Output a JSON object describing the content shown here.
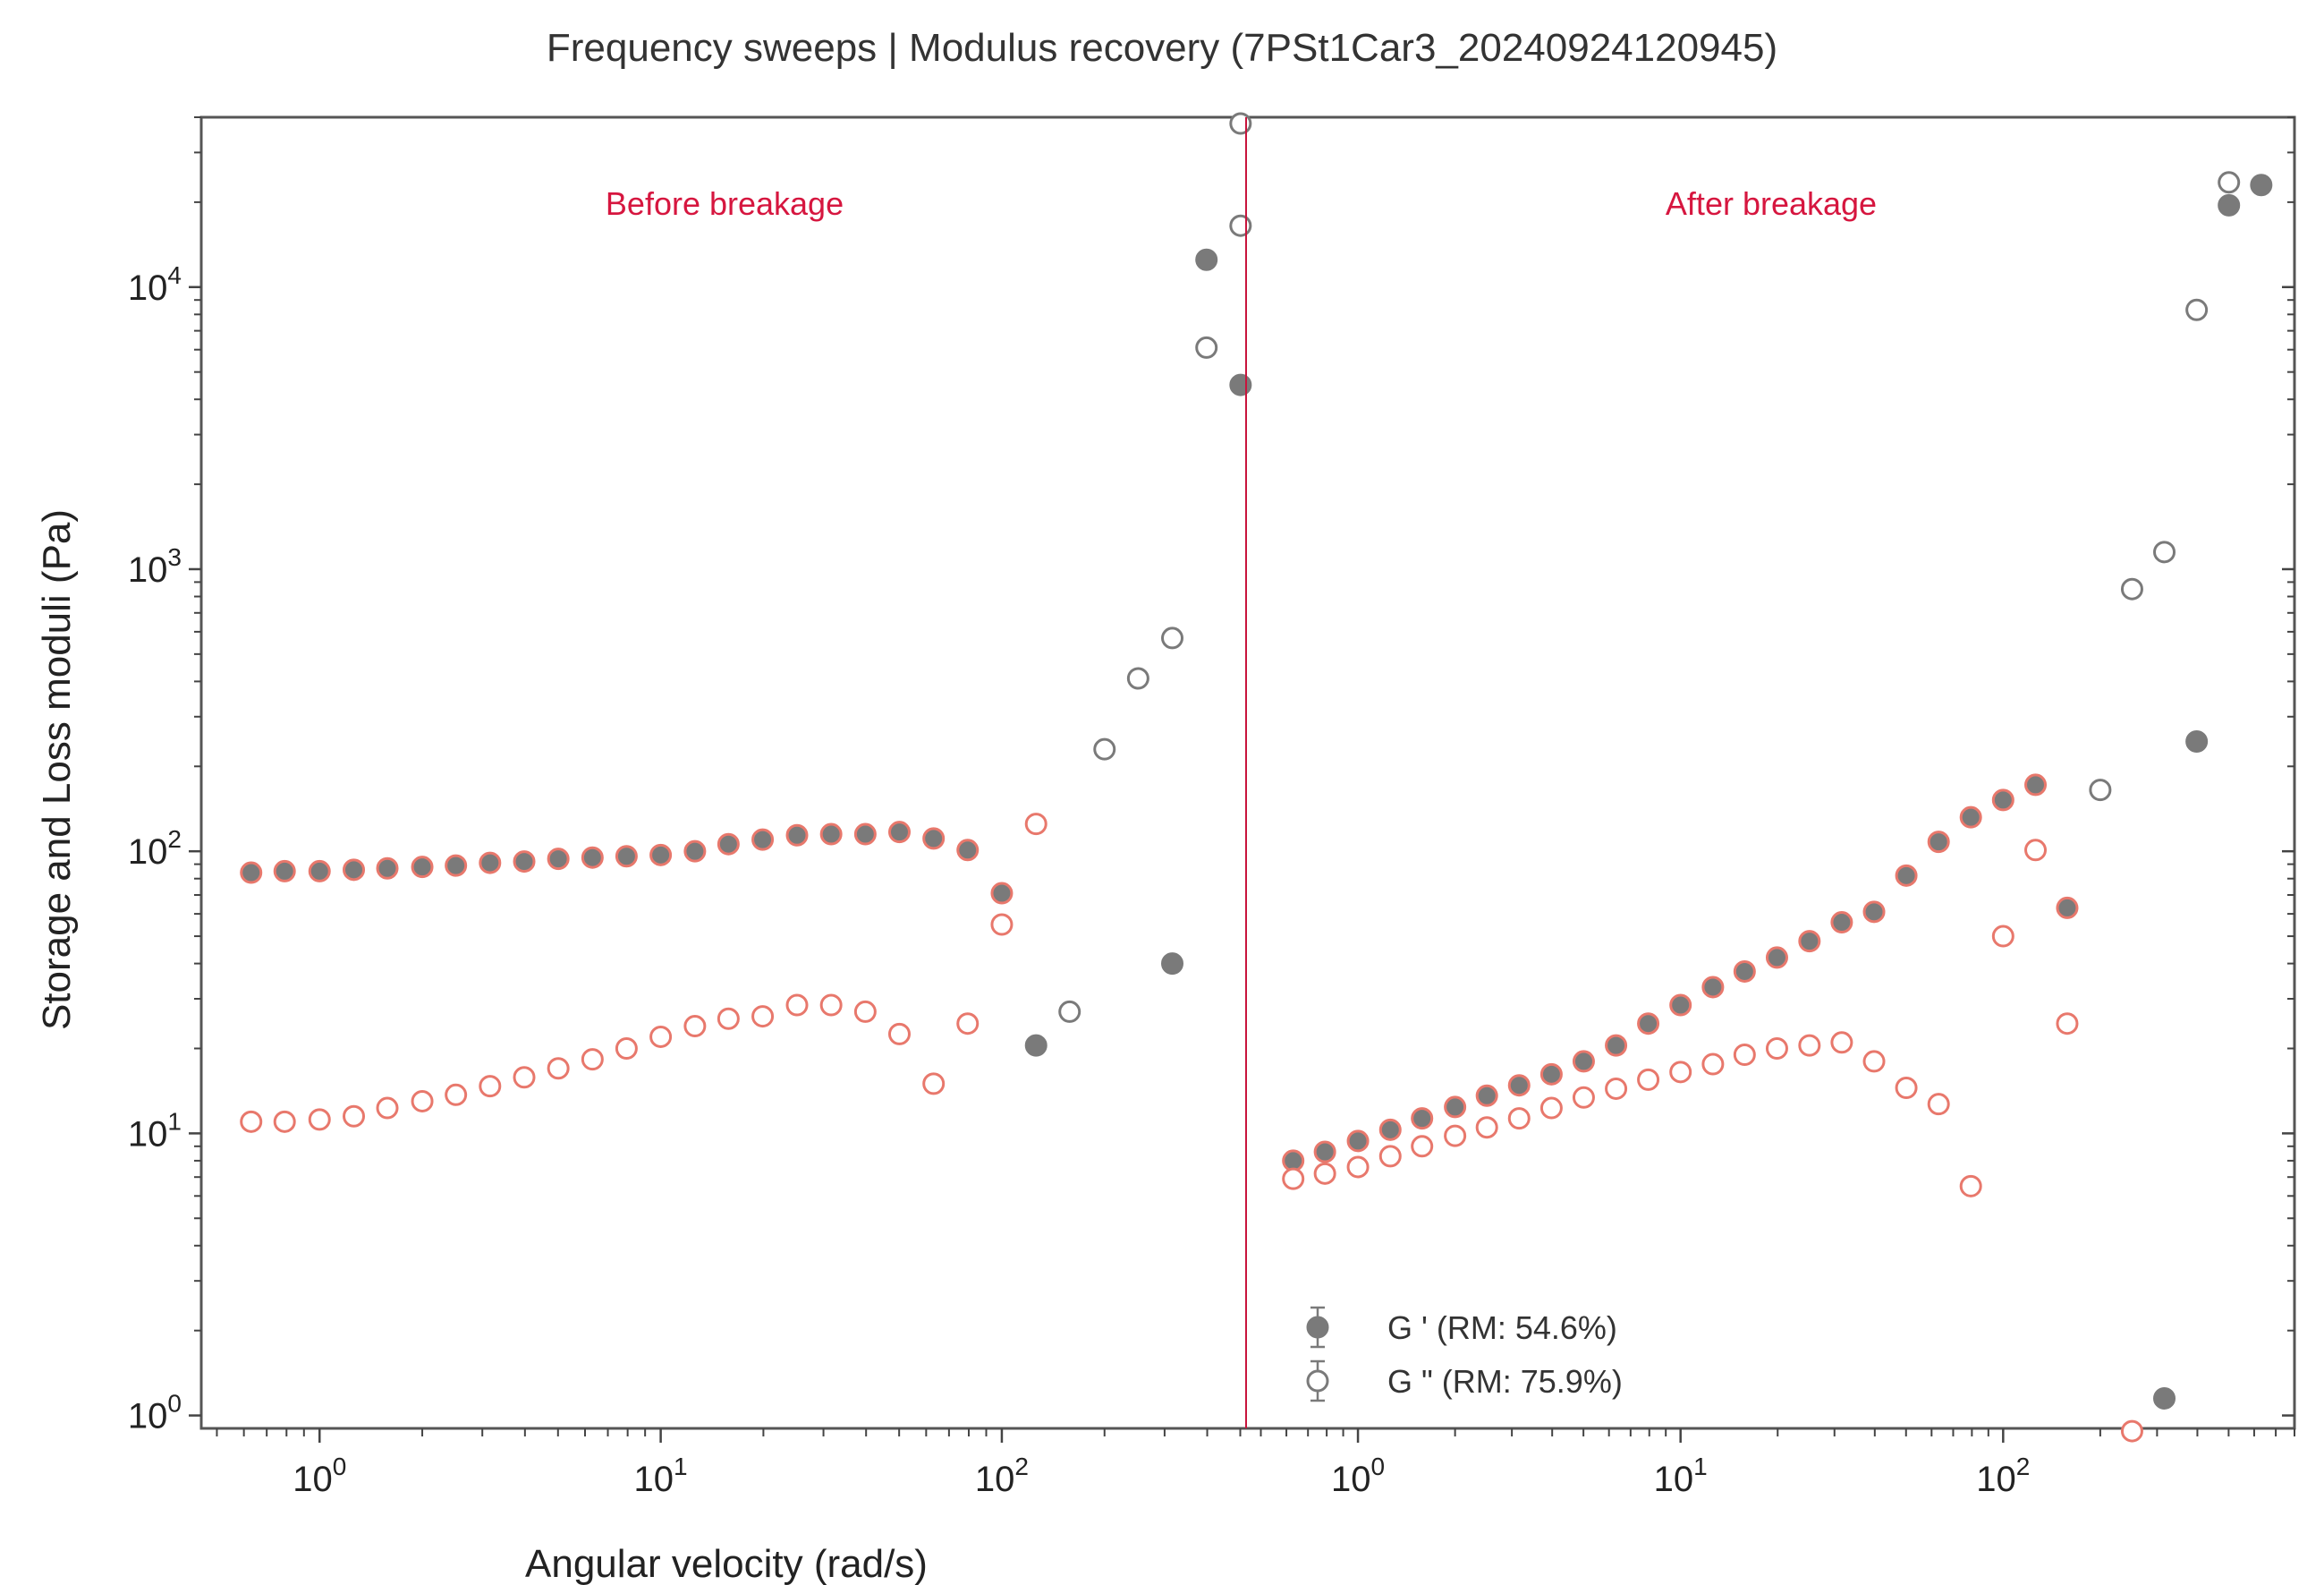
{
  "chart_data": {
    "type": "scatter",
    "title": "Frequency sweeps | Modulus recovery (7PSt1Car3_20240924120945)",
    "xlabel": "Angular velocity (rad/s)",
    "ylabel": "Storage and Loss moduli (Pa)",
    "x_scale": "log",
    "y_scale": "log",
    "ylim": [
      0.9,
      40000
    ],
    "grid": false,
    "y_tick_labels": [
      {
        "base": "10",
        "exp": "0",
        "value": 1
      },
      {
        "base": "10",
        "exp": "1",
        "value": 10
      },
      {
        "base": "10",
        "exp": "2",
        "value": 100
      },
      {
        "base": "10",
        "exp": "3",
        "value": 1000
      },
      {
        "base": "10",
        "exp": "4",
        "value": 10000
      }
    ],
    "x_tick_labels": [
      {
        "base": "10",
        "exp": "0",
        "value": 1
      },
      {
        "base": "10",
        "exp": "1",
        "value": 10
      },
      {
        "base": "10",
        "exp": "2",
        "value": 100
      }
    ],
    "legend": {
      "placement": "lower-center",
      "entries": [
        {
          "label": "G ' (RM: 54.6%)",
          "marker": "filled-circle"
        },
        {
          "label": "G \" (RM: 75.9%)",
          "marker": "open-circle"
        }
      ]
    },
    "colors": {
      "before_edge": "#e8786c",
      "after_edge": "#e8786c",
      "gray_marker": "#7a7a7a",
      "divider": "#c8143c",
      "annotation": "#d6163f"
    },
    "panels": [
      {
        "name": "before",
        "annotation": "Before breakage",
        "xlim": [
          0.45,
          520
        ],
        "series": [
          {
            "kind": "storage",
            "style": "filled-gray-edge-salmon",
            "x": [
              0.63,
              0.79,
              1.0,
              1.26,
              1.58,
              2.0,
              2.51,
              3.16,
              3.98,
              5.01,
              6.31,
              7.94,
              10,
              12.6,
              15.8,
              19.9,
              25.1,
              31.6,
              39.8,
              50.1,
              63.1,
              79.4,
              100
            ],
            "y": [
              84,
              85,
              85,
              86,
              87,
              88,
              89,
              91,
              92,
              94,
              95,
              96,
              97,
              100,
              106,
              110,
              114,
              115,
              115,
              117,
              111,
              101,
              71
            ]
          },
          {
            "kind": "loss",
            "style": "open-salmon",
            "x": [
              0.63,
              0.79,
              1.0,
              1.26,
              1.58,
              2.0,
              2.51,
              3.16,
              3.98,
              5.01,
              6.31,
              7.94,
              10,
              12.6,
              15.8,
              19.9,
              25.1,
              31.6,
              39.8,
              50.1,
              63.1,
              79.4,
              100,
              126
            ],
            "y": [
              11.0,
              11.0,
              11.2,
              11.5,
              12.3,
              13.0,
              13.7,
              14.7,
              15.8,
              17.0,
              18.3,
              20.0,
              22.0,
              24.0,
              25.5,
              26.0,
              28.5,
              28.5,
              27.0,
              22.5,
              15.0,
              24.5,
              55,
              125
            ]
          },
          {
            "kind": "storage",
            "style": "filled-gray",
            "x": [
              126,
              316,
              398,
              501
            ],
            "y": [
              20.5,
              40,
              12500,
              4500
            ]
          },
          {
            "kind": "loss",
            "style": "open-gray",
            "x": [
              158,
              200,
              251,
              316,
              398,
              501
            ],
            "y": [
              27,
              230,
              410,
              570,
              6100,
              16500
            ]
          },
          {
            "kind": "loss",
            "style": "open-gray",
            "x": [
              501
            ],
            "y": [
              38000
            ]
          }
        ]
      },
      {
        "name": "after",
        "annotation": "After breakage",
        "xlim": [
          0.45,
          800
        ],
        "series": [
          {
            "kind": "storage",
            "style": "filled-gray-edge-salmon",
            "x": [
              0.63,
              0.79,
              1.0,
              1.26,
              1.58,
              2.0,
              2.51,
              3.16,
              3.98,
              5.01,
              6.31,
              7.94,
              10,
              12.6,
              15.8,
              19.9,
              25.1,
              31.6,
              39.8,
              50.1,
              63.1,
              79.4,
              100,
              126,
              158
            ],
            "y": [
              8.0,
              8.6,
              9.4,
              10.3,
              11.3,
              12.4,
              13.6,
              14.8,
              16.2,
              18.0,
              20.5,
              24.5,
              28.5,
              33,
              37.5,
              42,
              48,
              56,
              61,
              82,
              108,
              132,
              152,
              172,
              63
            ]
          },
          {
            "kind": "loss",
            "style": "open-salmon",
            "x": [
              0.63,
              0.79,
              1.0,
              1.26,
              1.58,
              2.0,
              2.51,
              3.16,
              3.98,
              5.01,
              6.31,
              7.94,
              10,
              12.6,
              15.8,
              19.9,
              25.1,
              31.6,
              39.8,
              50.1,
              63.1,
              79.4,
              100,
              126,
              158,
              251
            ],
            "y": [
              6.9,
              7.2,
              7.6,
              8.3,
              9.0,
              9.8,
              10.5,
              11.3,
              12.3,
              13.4,
              14.4,
              15.5,
              16.5,
              17.6,
              19.0,
              20.0,
              20.5,
              21.0,
              18.0,
              14.5,
              12.7,
              6.5,
              50,
              101,
              24.5,
              0.88
            ]
          },
          {
            "kind": "storage",
            "style": "filled-gray",
            "x": [
              316,
              398,
              501,
              631
            ],
            "y": [
              1.15,
              245,
              19500,
              23000
            ]
          },
          {
            "kind": "loss",
            "style": "open-gray",
            "x": [
              200,
              251,
              316,
              398,
              501
            ],
            "y": [
              165,
              850,
              1150,
              8300,
              23500
            ]
          }
        ]
      }
    ]
  }
}
